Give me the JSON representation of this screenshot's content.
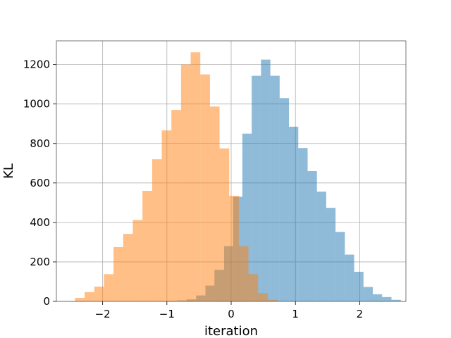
{
  "chart_data": {
    "type": "bar",
    "subtype": "overlapping-histogram",
    "title": "",
    "xlabel": "iteration",
    "ylabel": "KL",
    "xlim": [
      -2.72,
      2.72
    ],
    "ylim": [
      0,
      1320
    ],
    "xticks": [
      -2,
      -1,
      0,
      1,
      2
    ],
    "xtick_labels": [
      "−2",
      "−1",
      "0",
      "1",
      "2"
    ],
    "yticks": [
      0,
      200,
      400,
      600,
      800,
      1000,
      1200
    ],
    "ytick_labels": [
      "0",
      "200",
      "400",
      "600",
      "800",
      "1000",
      "1200"
    ],
    "grid": true,
    "legend": false,
    "series": [
      {
        "color": "#1f77b4",
        "opacity": 0.5,
        "bins": [
          [
            -0.98,
            -0.835,
            3
          ],
          [
            -0.835,
            -0.69,
            5
          ],
          [
            -0.69,
            -0.545,
            10
          ],
          [
            -0.545,
            -0.4,
            30
          ],
          [
            -0.4,
            -0.26,
            80
          ],
          [
            -0.26,
            -0.11,
            160
          ],
          [
            -0.11,
            0.03,
            280
          ],
          [
            0.03,
            0.175,
            530
          ],
          [
            0.175,
            0.32,
            850
          ],
          [
            0.32,
            0.465,
            1143
          ],
          [
            0.465,
            0.61,
            1225
          ],
          [
            0.61,
            0.755,
            1143
          ],
          [
            0.755,
            0.9,
            1030
          ],
          [
            0.9,
            1.045,
            885
          ],
          [
            1.045,
            1.19,
            777
          ],
          [
            1.19,
            1.335,
            660
          ],
          [
            1.335,
            1.48,
            556
          ],
          [
            1.48,
            1.625,
            474
          ],
          [
            1.625,
            1.77,
            352
          ],
          [
            1.77,
            1.915,
            237
          ],
          [
            1.915,
            2.06,
            150
          ],
          [
            2.06,
            2.205,
            73
          ],
          [
            2.205,
            2.35,
            36
          ],
          [
            2.35,
            2.495,
            22
          ],
          [
            2.495,
            2.64,
            8
          ]
        ]
      },
      {
        "color": "#ff7f0e",
        "opacity": 0.5,
        "bins": [
          [
            -2.58,
            -2.43,
            2
          ],
          [
            -2.43,
            -2.28,
            18
          ],
          [
            -2.28,
            -2.13,
            47
          ],
          [
            -2.13,
            -1.98,
            75
          ],
          [
            -1.98,
            -1.83,
            138
          ],
          [
            -1.83,
            -1.68,
            275
          ],
          [
            -1.68,
            -1.53,
            342
          ],
          [
            -1.53,
            -1.38,
            412
          ],
          [
            -1.38,
            -1.23,
            560
          ],
          [
            -1.23,
            -1.08,
            720
          ],
          [
            -1.08,
            -0.93,
            866
          ],
          [
            -0.93,
            -0.78,
            970
          ],
          [
            -0.78,
            -0.63,
            1200
          ],
          [
            -0.63,
            -0.48,
            1262
          ],
          [
            -0.48,
            -0.33,
            1150
          ],
          [
            -0.33,
            -0.18,
            987
          ],
          [
            -0.18,
            -0.03,
            775
          ],
          [
            -0.03,
            0.12,
            535
          ],
          [
            0.12,
            0.27,
            280
          ],
          [
            0.27,
            0.42,
            138
          ],
          [
            0.42,
            0.57,
            42
          ],
          [
            0.57,
            0.72,
            8
          ]
        ]
      }
    ]
  }
}
